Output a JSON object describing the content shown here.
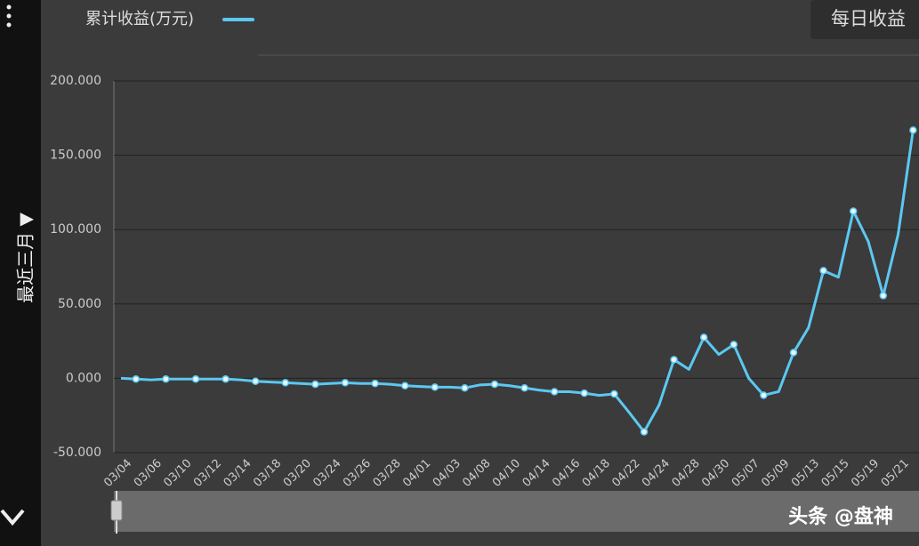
{
  "chart_data": {
    "type": "line",
    "categories": [
      "03/04",
      null,
      "03/06",
      null,
      "03/10",
      null,
      "03/12",
      null,
      "03/14",
      null,
      "03/18",
      null,
      "03/20",
      null,
      "03/24",
      null,
      "03/26",
      null,
      "03/28",
      null,
      "04/01",
      null,
      "04/03",
      null,
      "04/08",
      null,
      "04/10",
      null,
      "04/14",
      null,
      "04/16",
      null,
      "04/18",
      null,
      "04/22",
      null,
      "04/24",
      null,
      "04/28",
      null,
      "04/30",
      null,
      "05/07",
      null,
      "05/09",
      null,
      "05/13",
      null,
      "05/15",
      null,
      "05/19",
      null,
      "05/21",
      null
    ],
    "series": [
      {
        "name": "累计收益(万元)",
        "color": "#5cc8f2",
        "values": [
          0,
          -0.5,
          -1,
          -0.5,
          -0.5,
          -0.5,
          -0.5,
          -0.5,
          -1,
          -2,
          -2.5,
          -3,
          -3.5,
          -4,
          -3.5,
          -3,
          -3.5,
          -3.5,
          -4,
          -5,
          -5.5,
          -6,
          -6,
          -6.5,
          -4.5,
          -4,
          -5,
          -6.5,
          -8,
          -9,
          -9,
          -10,
          -11.5,
          -10.5,
          -23,
          -36,
          -18,
          12.5,
          6,
          27.5,
          16,
          22.7,
          0,
          -11.4,
          -9,
          17.3,
          34,
          72.4,
          68,
          112.4,
          92,
          55.6,
          97,
          166.9
        ]
      }
    ],
    "ylim": [
      -50,
      200
    ],
    "yticks": [
      {
        "value": -50,
        "label": "-50.000"
      },
      {
        "value": 0,
        "label": "0.000"
      },
      {
        "value": 50,
        "label": "50.000"
      },
      {
        "value": 100,
        "label": "100.000"
      },
      {
        "value": 150,
        "label": "150.000"
      },
      {
        "value": 200,
        "label": "200.000"
      }
    ],
    "grid": true
  },
  "sidebar": {
    "period": "最近三月 ▼"
  },
  "button": "每日收益",
  "watermark": "头条 @盘神"
}
